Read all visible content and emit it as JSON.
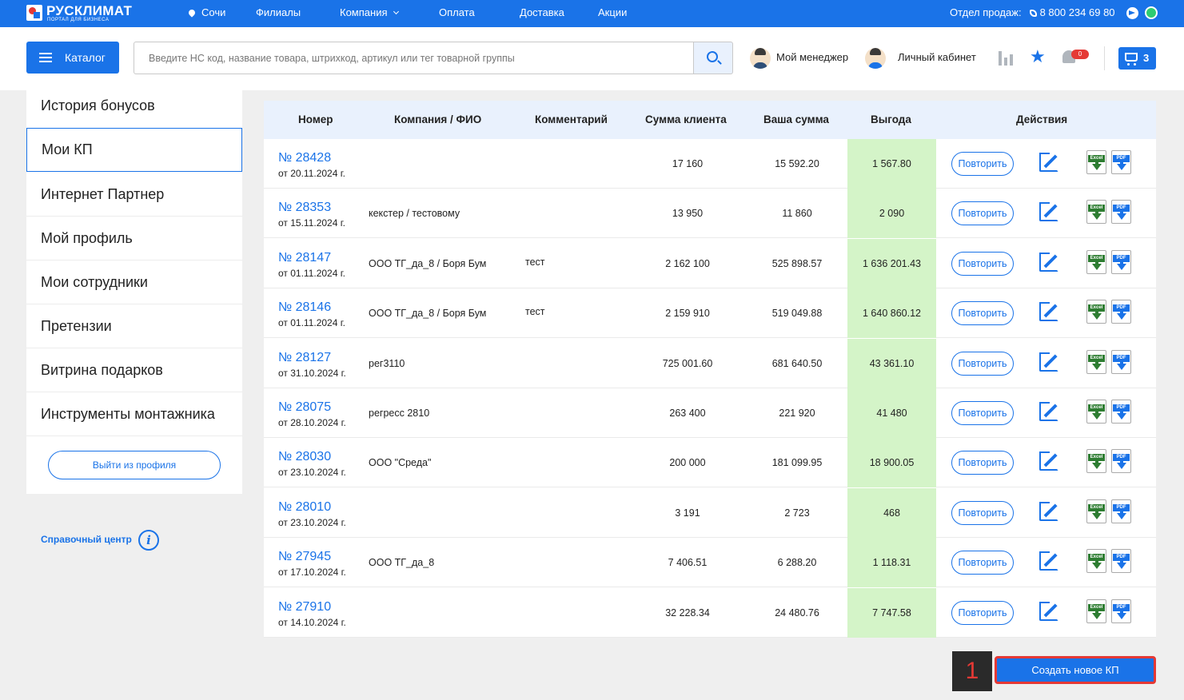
{
  "brand": {
    "name": "РУСКЛИМАТ",
    "tagline": "ПОРТАЛ ДЛЯ БИЗНЕСА"
  },
  "topbar": {
    "city": "Сочи",
    "nav": [
      "Филиалы",
      "Компания",
      "Оплата",
      "Доставка",
      "Акции"
    ],
    "sales_label": "Отдел продаж:",
    "phone": "8 800 234 69 80"
  },
  "header": {
    "catalog_label": "Каталог",
    "search_placeholder": "Введите НС код, название товара, штрихкод, артикул или тег товарной группы",
    "manager_label": "Мой менеджер",
    "cabinet_label": "Личный кабинет",
    "notifications_count": "0",
    "cart_count": "3"
  },
  "sidebar": {
    "items": [
      "История бонусов",
      "Мои КП",
      "Интернет Партнер",
      "Мой профиль",
      "Мои сотрудники",
      "Претензии",
      "Витрина подарков",
      "Инструменты монтажника"
    ],
    "active_index": 1,
    "logout_label": "Выйти из профиля",
    "help_label": "Справочный центр"
  },
  "table": {
    "headers": [
      "Номер",
      "Компания / ФИО",
      "Комментарий",
      "Сумма клиента",
      "Ваша сумма",
      "Выгода",
      "Действия"
    ],
    "repeat_label": "Повторить",
    "excel_label": "Excel",
    "pdf_label": "PDF",
    "rows": [
      {
        "number": "№ 28428",
        "date": "от 20.11.2024 г.",
        "company": "",
        "comment": "",
        "client_sum": "17 160",
        "your_sum": "15 592.20",
        "gain": "1 567.80"
      },
      {
        "number": "№ 28353",
        "date": "от 15.11.2024 г.",
        "company": "кекстер / тестовому",
        "comment": "",
        "client_sum": "13 950",
        "your_sum": "11 860",
        "gain": "2 090"
      },
      {
        "number": "№ 28147",
        "date": "от 01.11.2024 г.",
        "company": "ООО ТГ_да_8 / Боря Бум",
        "comment": "тест",
        "client_sum": "2 162 100",
        "your_sum": "525 898.57",
        "gain": "1 636 201.43"
      },
      {
        "number": "№ 28146",
        "date": "от 01.11.2024 г.",
        "company": "ООО ТГ_да_8 / Боря Бум",
        "comment": "тест",
        "client_sum": "2 159 910",
        "your_sum": "519 049.88",
        "gain": "1 640 860.12"
      },
      {
        "number": "№ 28127",
        "date": "от 31.10.2024 г.",
        "company": "рег3110",
        "comment": "",
        "client_sum": "725 001.60",
        "your_sum": "681 640.50",
        "gain": "43 361.10"
      },
      {
        "number": "№ 28075",
        "date": "от 28.10.2024 г.",
        "company": "регресс 2810",
        "comment": "",
        "client_sum": "263 400",
        "your_sum": "221 920",
        "gain": "41 480"
      },
      {
        "number": "№ 28030",
        "date": "от 23.10.2024 г.",
        "company": "ООО \"Среда\"",
        "comment": "",
        "client_sum": "200 000",
        "your_sum": "181 099.95",
        "gain": "18 900.05"
      },
      {
        "number": "№ 28010",
        "date": "от 23.10.2024 г.",
        "company": "",
        "comment": "",
        "client_sum": "3 191",
        "your_sum": "2 723",
        "gain": "468"
      },
      {
        "number": "№ 27945",
        "date": "от 17.10.2024 г.",
        "company": "ООО ТГ_да_8",
        "comment": "",
        "client_sum": "7 406.51",
        "your_sum": "6 288.20",
        "gain": "1 118.31"
      },
      {
        "number": "№ 27910",
        "date": "от 14.10.2024 г.",
        "company": "",
        "comment": "",
        "client_sum": "32 228.34",
        "your_sum": "24 480.76",
        "gain": "7 747.58"
      }
    ]
  },
  "create_button_label": "Создать новое КП",
  "step_badge": "1",
  "colors": {
    "accent": "#1a73e8",
    "gain_bg": "#d4f4c8",
    "highlight": "#e53935"
  }
}
